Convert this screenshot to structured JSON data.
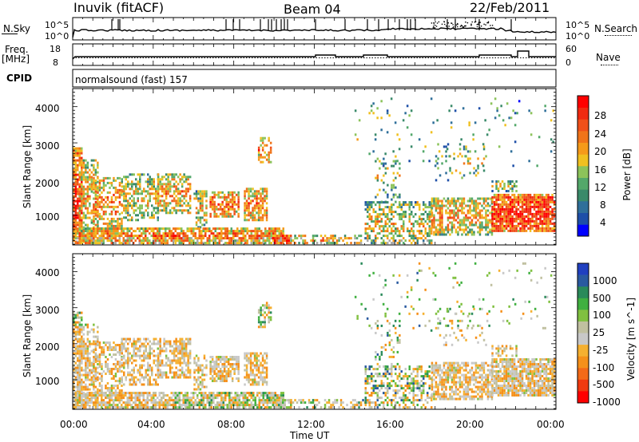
{
  "header": {
    "station": "Inuvik (fitACF)",
    "beam": "Beam 04",
    "date": "22/Feb/2011"
  },
  "top_panels": {
    "nsky_label": "N.Sky",
    "nsearch_label": "N.Search",
    "nsky_ticks": [
      "10^5",
      "10^0"
    ],
    "nsearch_ticks": [
      "10^5",
      "10^0"
    ],
    "freq_label_1": "Freq.",
    "freq_label_2": "[MHz]",
    "freq_ticks": [
      "18",
      "8"
    ],
    "nave_label": "Nave",
    "nave_ticks": [
      "60",
      "0"
    ],
    "cpid_label": "CPID",
    "cpid_value": "normalsound (fast) 157"
  },
  "colors": {
    "power_scale": [
      "#0000ff",
      "#1e4fa8",
      "#2f6f9a",
      "#3a8a6a",
      "#53a86a",
      "#8cc35a",
      "#f0c020",
      "#f59a1a",
      "#f0741a",
      "#f0501a",
      "#f02a10",
      "#ff0000"
    ],
    "velocity_scale": [
      "#ff0000",
      "#f03a10",
      "#f36a18",
      "#f5901a",
      "#f5b030",
      "#c8c8c8",
      "#c0c0a0",
      "#80c040",
      "#40b040",
      "#2a8a5a",
      "#2a5aa0",
      "#2040c0"
    ],
    "ground_scatter": "#a8a8a8"
  },
  "chart_data": [
    {
      "type": "heatmap",
      "name": "power",
      "ylabel": "Slant Range [km]",
      "xlim_hours": [
        0,
        24
      ],
      "ylim": [
        180,
        4500
      ],
      "y_ticks": [
        1000,
        2000,
        3000,
        4000
      ],
      "colorbar_label": "Power [dB]",
      "colorbar_ticks": [
        "28",
        "24",
        "20",
        "16",
        "12",
        "8",
        "4"
      ],
      "colorbar_range": [
        0,
        30
      ]
    },
    {
      "type": "heatmap",
      "name": "velocity",
      "ylabel": "Slant Range [km]",
      "xlabel": "Time UT",
      "x_ticks": [
        "00:00",
        "04:00",
        "08:00",
        "12:00",
        "16:00",
        "20:00",
        "00:00"
      ],
      "xlim_hours": [
        0,
        24
      ],
      "ylim": [
        180,
        4500
      ],
      "y_ticks": [
        1000,
        2000,
        3000,
        4000
      ],
      "colorbar_label": "Velocity [m s^-1]",
      "colorbar_ticks": [
        "1000",
        "500",
        "100",
        "25",
        "-25",
        "-100",
        "-500",
        "-1000"
      ]
    }
  ]
}
